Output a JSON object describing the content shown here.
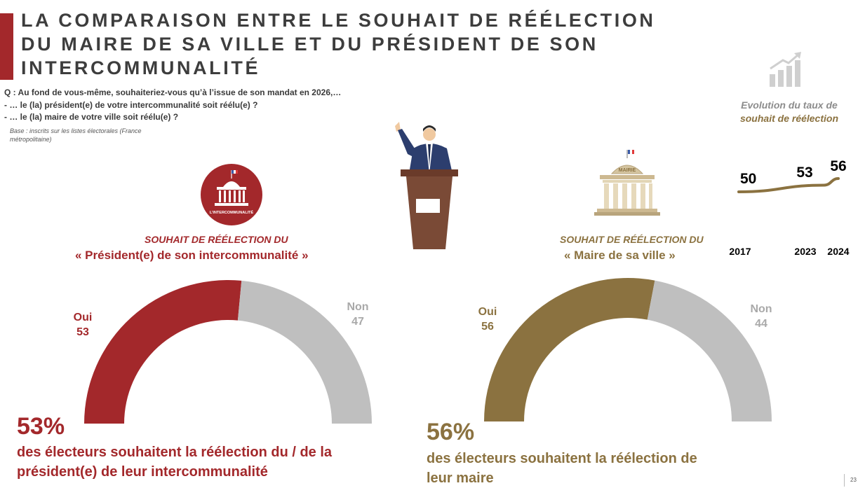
{
  "title": {
    "lines": [
      "LA COMPARAISON ENTRE LE SOUHAIT DE RÉÉLECTION",
      "DU MAIRE DE SA VILLE ET DU PRÉSIDENT DE SON",
      "INTERCOMMUNALITÉ"
    ]
  },
  "question": {
    "lines": [
      "Q : Au fond de vous-même, souhaiteriez-vous qu’à l’issue de son mandat en 2026,…",
      "- … le (la) président(e) de votre intercommunalité soit réélu(e) ?",
      "- … le (la) maire de votre ville soit réélu(e) ?"
    ],
    "base": "Base : inscrits sur les listes électorales (France métropolitaine)"
  },
  "left": {
    "badge_text": "L’INTERCOMMUNALITÉ",
    "heading": "SOUHAIT DE RÉÉLECTION DU",
    "subject": "« Président(e) de son intercommunalité »",
    "big_pct": "53%",
    "summary_lines": [
      "des électeurs souhaitent la réélection du / de la",
      "président(e) de leur intercommunalité"
    ]
  },
  "right": {
    "building_text": "MAIRIE",
    "heading": "SOUHAIT DE RÉÉLECTION DU",
    "subject": "« Maire de sa ville »",
    "big_pct": "56%",
    "summary_lines": [
      "des électeurs souhaitent la réélection de",
      "leur maire"
    ]
  },
  "evolution": {
    "label_line1": "Evolution du taux de",
    "label_line2": "souhait de réélection"
  },
  "page_number": "23",
  "colors": {
    "red": "#a3282b",
    "gold": "#8b7240",
    "grey": "#bfbfbf"
  },
  "chart_data": [
    {
      "type": "pie",
      "title": "Président(e) de son intercommunalité",
      "categories": [
        "Oui",
        "Non"
      ],
      "values": [
        53,
        47
      ],
      "colors": [
        "#a3282b",
        "#bfbfbf"
      ]
    },
    {
      "type": "pie",
      "title": "Maire de sa ville",
      "categories": [
        "Oui",
        "Non"
      ],
      "values": [
        56,
        44
      ],
      "colors": [
        "#8b7240",
        "#bfbfbf"
      ]
    },
    {
      "type": "line",
      "title": "Evolution du taux de souhait de réélection",
      "x": [
        "2017",
        "2023",
        "2024"
      ],
      "values": [
        50,
        53,
        56
      ]
    }
  ]
}
